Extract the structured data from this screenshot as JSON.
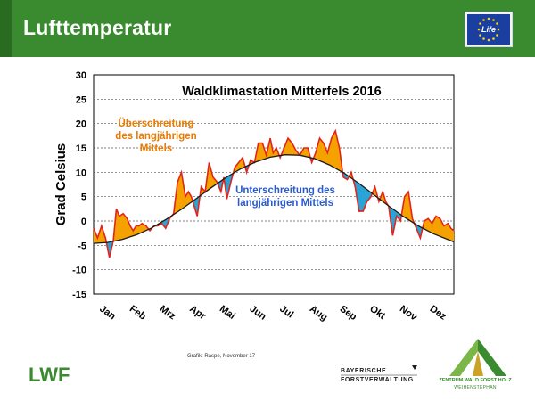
{
  "header": {
    "title": "Lufttemperatur",
    "eu_logo_text": "Life"
  },
  "footer": {
    "credit": "Grafik: Raspe, November 17",
    "lwf_logo_text": "LWF",
    "bayerische_line1": "BAYERISCHE",
    "bayerische_line2": "FORSTVERWALTUNG",
    "zentrum_line1": "ZENTRUM WALD FORST HOLZ",
    "zentrum_line2": "WEIHENSTEPHAN"
  },
  "colors": {
    "header_green": "#3a8a2f",
    "above_fill": "#f5a100",
    "below_fill": "#2aa4d6",
    "temp_line": "#e2241b",
    "mean_line": "#1a1a1a",
    "annot_above": "#e87a00",
    "annot_below": "#2a5bd0",
    "eu_blue": "#1b3fa0",
    "eu_star": "#ffd400"
  },
  "chart_data": {
    "type": "area",
    "title": "Waldklimastation Mitterfels 2016",
    "xlabel": "",
    "ylabel": "Grad Celsius",
    "ylim": [
      -15,
      30
    ],
    "yticks": [
      30,
      25,
      20,
      15,
      10,
      5,
      0,
      -5,
      -10,
      -15
    ],
    "grid": true,
    "month_labels": [
      "Jan",
      "Feb",
      "Mrz",
      "Apr",
      "Mai",
      "Jun",
      "Jul",
      "Aug",
      "Sep",
      "Okt",
      "Nov",
      "Dez"
    ],
    "series": [
      {
        "x": [
          1,
          5,
          9,
          13,
          17,
          21,
          24,
          27,
          31,
          35,
          38,
          41,
          44,
          47,
          50,
          54,
          58,
          62,
          66,
          70,
          74,
          78,
          82,
          86,
          90,
          94,
          97,
          100,
          103,
          106,
          110,
          114,
          118,
          122,
          126,
          130,
          133,
          136,
          140,
          144,
          148,
          152,
          156,
          160,
          164,
          168,
          172,
          176,
          180,
          183,
          186,
          190,
          194,
          198,
          202,
          206,
          210,
          214,
          218,
          222,
          226,
          230,
          234,
          238,
          242,
          246,
          250,
          254,
          258,
          262,
          266,
          270,
          274,
          278,
          282,
          286,
          290,
          294,
          297,
          300,
          304,
          308,
          312,
          316,
          320,
          324,
          328,
          332,
          336,
          340,
          344,
          348,
          352,
          356,
          360,
          363,
          366
        ],
        "values": [
          -1.5,
          -3.5,
          -1,
          -3.5,
          -7.5,
          -4,
          2.5,
          1,
          1.5,
          0.5,
          -1,
          -2,
          -1,
          -1,
          -0.5,
          -1,
          -2,
          -1,
          -1,
          -0.5,
          -1.5,
          0.5,
          1.5,
          8,
          10,
          5,
          6,
          5,
          3,
          1,
          7,
          6,
          12,
          9,
          8,
          6,
          9,
          4.5,
          8,
          11,
          12,
          13,
          10,
          12.5,
          12,
          16,
          16,
          13.5,
          17,
          14,
          15,
          13,
          15,
          17,
          16,
          14.5,
          13.5,
          15,
          15,
          12,
          14,
          17,
          16,
          14,
          17,
          18.5,
          15,
          9,
          8.5,
          10,
          7,
          2,
          2,
          4,
          5,
          7,
          4,
          6,
          4,
          3,
          -3,
          1,
          0,
          5,
          6,
          0.5,
          -1.5,
          -3.5,
          0,
          0.5,
          -0.5,
          1,
          0.5,
          -1,
          -0.5,
          -1.5,
          -2
        ]
      },
      {
        "x": [
          1,
          15,
          30,
          45,
          60,
          75,
          90,
          105,
          120,
          135,
          150,
          165,
          180,
          195,
          210,
          225,
          240,
          255,
          270,
          285,
          300,
          315,
          330,
          345,
          366
        ],
        "values": [
          -4.6,
          -4.4,
          -3.8,
          -2.8,
          -1.4,
          0.4,
          2.4,
          4.6,
          6.8,
          8.9,
          10.7,
          12.1,
          13.1,
          13.6,
          13.5,
          12.8,
          11.5,
          9.8,
          7.7,
          5.4,
          3.1,
          0.9,
          -1.0,
          -2.6,
          -4.3
        ]
      }
    ],
    "annotations": [
      {
        "text": "Überschreitung",
        "color": "annot_above"
      },
      {
        "text": "des langjährigen",
        "color": "annot_above"
      },
      {
        "text": "Mittels",
        "color": "annot_above"
      },
      {
        "text": "Unterschreitung des",
        "color": "annot_below"
      },
      {
        "text": "langjährigen Mittels",
        "color": "annot_below"
      }
    ]
  }
}
